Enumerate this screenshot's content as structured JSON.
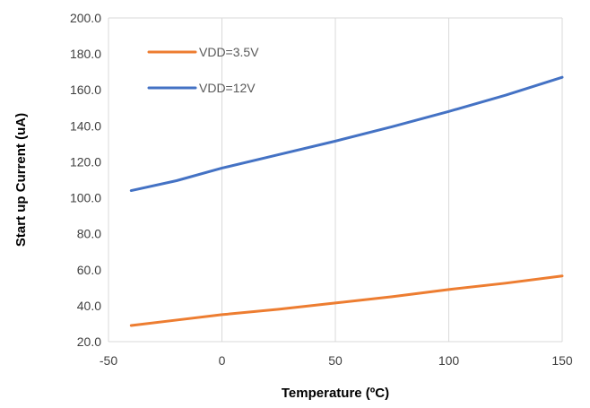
{
  "chart_data": {
    "type": "line",
    "title": "",
    "xlabel": "Temperature (ºC)",
    "ylabel": "Start up Current (uA)",
    "xlim": [
      -50,
      150
    ],
    "ylim": [
      20,
      200
    ],
    "x_ticks": [
      -50,
      0,
      50,
      100,
      150
    ],
    "y_ticks": [
      20,
      40,
      60,
      80,
      100,
      120,
      140,
      160,
      180,
      200
    ],
    "x_tick_labels": [
      "-50",
      "0",
      "50",
      "100",
      "150"
    ],
    "y_tick_labels": [
      "20.0",
      "40.0",
      "60.0",
      "80.0",
      "100.0",
      "120.0",
      "140.0",
      "160.0",
      "180.0",
      "200.0"
    ],
    "grid": "vertical",
    "legend_position": "top-left",
    "series": [
      {
        "name": "VDD=3.5V",
        "color": "#ED7D31",
        "x": [
          -40,
          -20,
          0,
          25,
          50,
          75,
          100,
          125,
          150
        ],
        "y": [
          29,
          32,
          35,
          38,
          41.5,
          45,
          49,
          52.5,
          56.5
        ]
      },
      {
        "name": "VDD=12V",
        "color": "#4472C4",
        "x": [
          -40,
          -20,
          0,
          25,
          50,
          75,
          100,
          125,
          150
        ],
        "y": [
          104,
          109.5,
          116.5,
          124,
          131.5,
          139.5,
          148,
          157,
          167
        ]
      }
    ]
  }
}
